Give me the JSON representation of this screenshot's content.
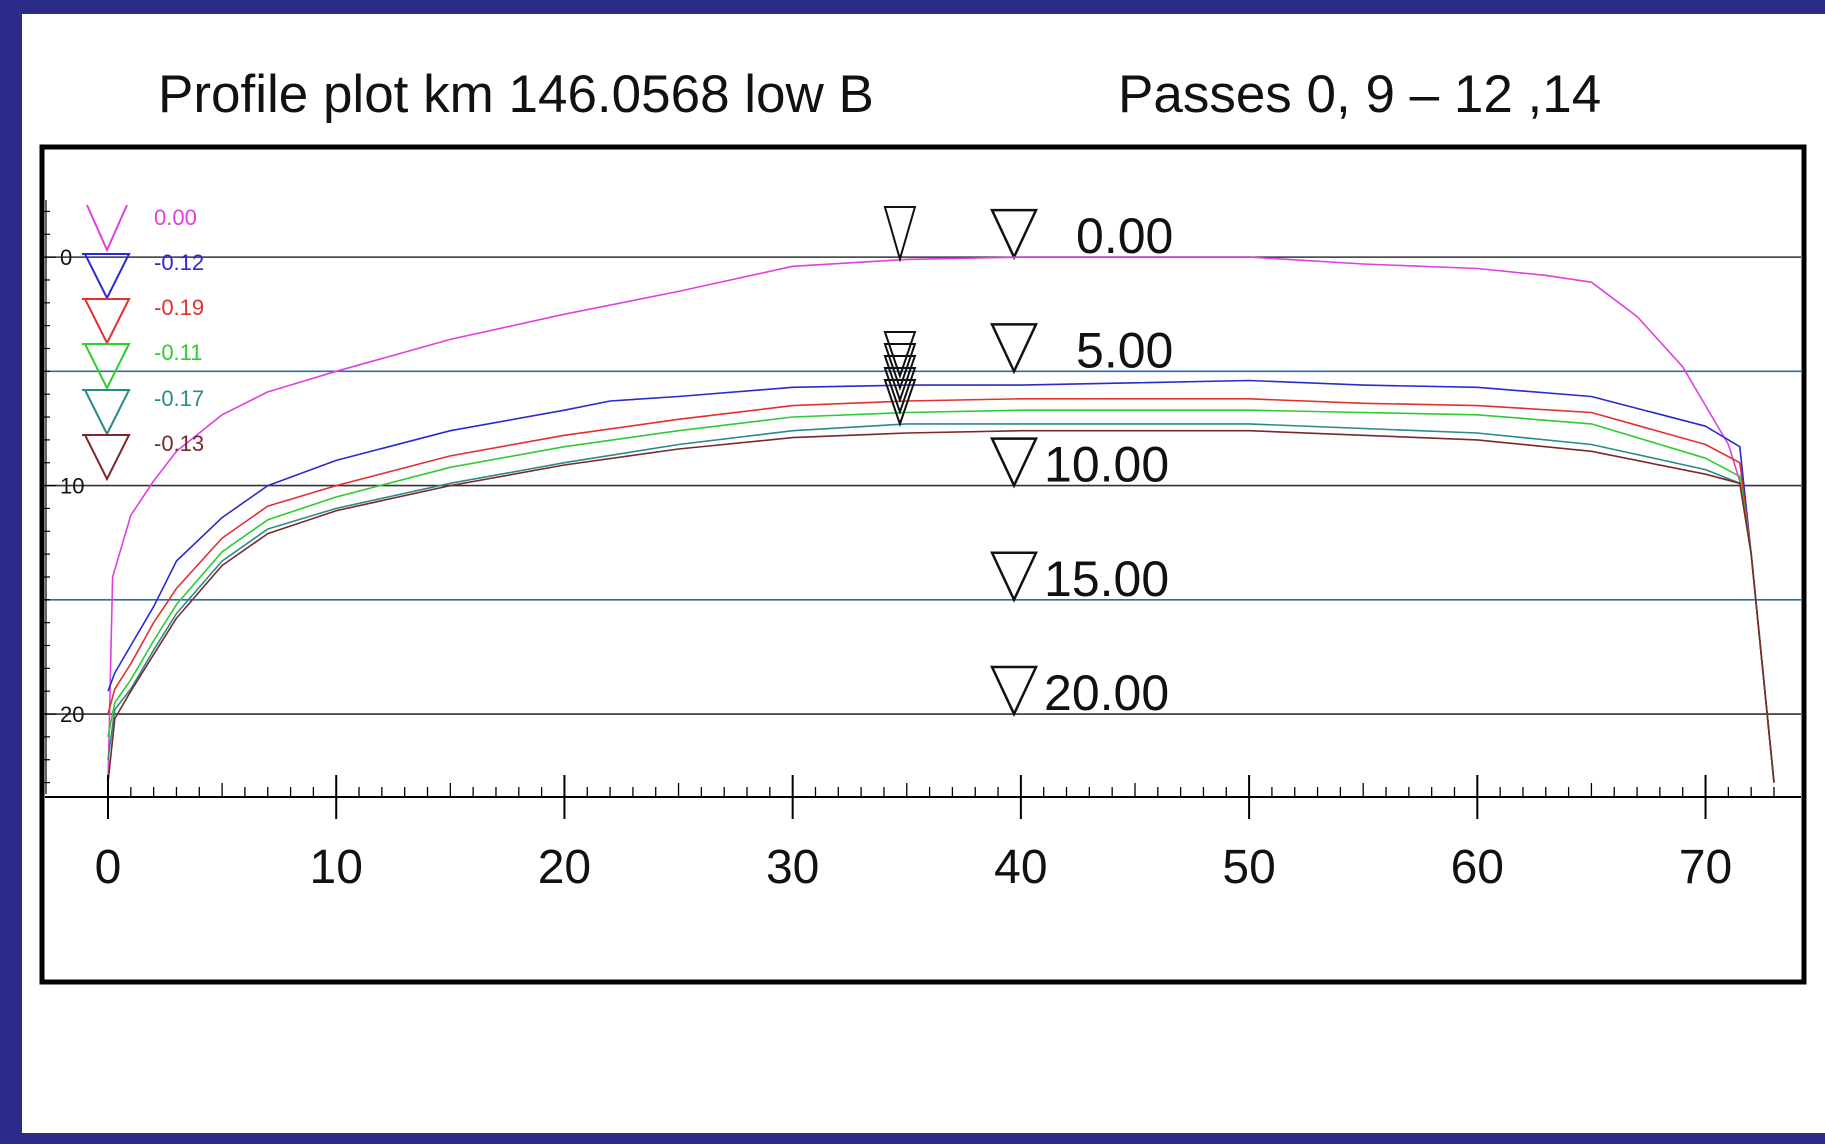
{
  "titles": {
    "left": "Profile plot km 146.0568 low B",
    "right": "Passes 0, 9 – 12 ,14"
  },
  "chart_data": {
    "type": "line",
    "x_ticks": [
      0,
      10,
      20,
      30,
      40,
      50,
      60,
      70
    ],
    "xlim": [
      0,
      73
    ],
    "y_ticks": [
      0,
      10,
      20
    ],
    "ylim": [
      23.5,
      -2.5
    ],
    "level_lines": [
      {
        "level": 0,
        "label": "0.00",
        "color": "#333333"
      },
      {
        "level": 5,
        "label": "5.00",
        "color": "#2a6ea8"
      },
      {
        "level": 10,
        "label": "10.00",
        "color": "#333333"
      },
      {
        "level": 15,
        "label": "15.00",
        "color": "#2a6ea8"
      },
      {
        "level": 20,
        "label": "20.00",
        "color": "#333333"
      }
    ],
    "series": [
      {
        "name": "0.00",
        "color": "#e040e0",
        "x": [
          0,
          0.2,
          1,
          2,
          3,
          5,
          7,
          10,
          15,
          20,
          25,
          30,
          35,
          40,
          45,
          50,
          55,
          60,
          63,
          65,
          67,
          69,
          70,
          71,
          71.5,
          72,
          72.5,
          73
        ],
        "y": [
          23,
          14,
          11.3,
          9.8,
          8.5,
          6.9,
          5.9,
          5.0,
          3.6,
          2.5,
          1.5,
          0.4,
          0.1,
          0.0,
          0.0,
          0.0,
          0.3,
          0.5,
          0.8,
          1.1,
          2.6,
          4.8,
          6.5,
          8.2,
          9.8,
          13,
          18,
          23
        ]
      },
      {
        "name": "-0.12",
        "color": "#2a2ad0",
        "x": [
          0,
          0.3,
          1,
          2,
          3,
          5,
          7,
          10,
          15,
          20,
          22,
          25,
          30,
          35,
          40,
          45,
          50,
          55,
          60,
          65,
          70,
          71.5,
          72,
          72.5,
          73
        ],
        "y": [
          19,
          18.2,
          17.0,
          15.3,
          13.3,
          11.4,
          10.0,
          8.9,
          7.6,
          6.7,
          6.3,
          6.1,
          5.7,
          5.6,
          5.6,
          5.5,
          5.4,
          5.6,
          5.7,
          6.1,
          7.4,
          8.3,
          13,
          18,
          23
        ]
      },
      {
        "name": "-0.19",
        "color": "#e03030",
        "x": [
          0,
          0.3,
          1,
          2,
          3,
          5,
          7,
          10,
          15,
          20,
          25,
          30,
          35,
          40,
          45,
          50,
          55,
          60,
          65,
          70,
          71.5,
          72,
          72.5,
          73
        ],
        "y": [
          20,
          18.9,
          17.8,
          16.0,
          14.5,
          12.3,
          10.9,
          10.0,
          8.7,
          7.8,
          7.1,
          6.5,
          6.3,
          6.2,
          6.2,
          6.2,
          6.4,
          6.5,
          6.8,
          8.2,
          9.0,
          13,
          18,
          23
        ]
      },
      {
        "name": "-0.11",
        "color": "#2ecc2e",
        "x": [
          0,
          0.3,
          1,
          2,
          3,
          5,
          7,
          10,
          15,
          20,
          25,
          30,
          35,
          40,
          45,
          50,
          55,
          60,
          65,
          70,
          71.5,
          72,
          72.5,
          73
        ],
        "y": [
          21,
          19.5,
          18.5,
          16.8,
          15.2,
          12.9,
          11.5,
          10.5,
          9.2,
          8.3,
          7.6,
          7.0,
          6.8,
          6.7,
          6.7,
          6.7,
          6.8,
          6.9,
          7.3,
          8.8,
          9.6,
          13,
          18,
          23
        ]
      },
      {
        "name": "-0.17",
        "color": "#2a8a8a",
        "x": [
          0,
          0.3,
          1,
          2,
          3,
          5,
          7,
          10,
          15,
          20,
          25,
          30,
          35,
          40,
          45,
          50,
          55,
          60,
          65,
          70,
          71.5,
          72,
          72.5,
          73
        ],
        "y": [
          22,
          19.8,
          18.9,
          17.2,
          15.6,
          13.3,
          11.9,
          11.0,
          9.9,
          9.0,
          8.2,
          7.6,
          7.3,
          7.3,
          7.3,
          7.3,
          7.5,
          7.7,
          8.2,
          9.3,
          9.9,
          13,
          18,
          23
        ]
      },
      {
        "name": "-0.13",
        "color": "#7a2a2a",
        "x": [
          0,
          0.3,
          1,
          2,
          3,
          5,
          7,
          10,
          15,
          20,
          25,
          30,
          35,
          40,
          45,
          50,
          55,
          60,
          65,
          70,
          71.5,
          72,
          72.5,
          73
        ],
        "y": [
          23,
          20.2,
          19.0,
          17.4,
          15.8,
          13.5,
          12.1,
          11.1,
          10.0,
          9.1,
          8.4,
          7.9,
          7.7,
          7.6,
          7.6,
          7.6,
          7.8,
          8.0,
          8.5,
          9.5,
          9.9,
          13,
          18,
          23
        ]
      }
    ]
  }
}
